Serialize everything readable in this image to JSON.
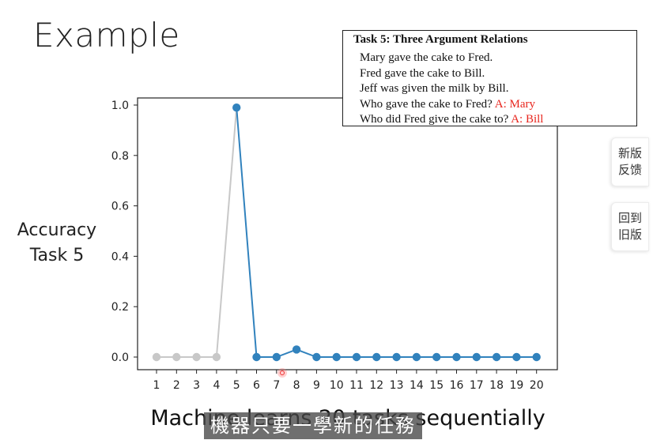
{
  "slide": {
    "title": "Example",
    "y_desc_line1": "Accuracy",
    "y_desc_line2": "Task 5",
    "caption": "Machine learns 20 tasks sequentially",
    "subtitle": "機器只要一學新的任務"
  },
  "task_box": {
    "title": "Task 5: Three Argument Relations",
    "lines": [
      {
        "text": "Mary gave the cake to Fred.",
        "answer": ""
      },
      {
        "text": "Fred gave the cake to Bill.",
        "answer": ""
      },
      {
        "text": "Jeff was given the milk by Bill.",
        "answer": ""
      },
      {
        "text": "Who gave the cake to Fred?",
        "answer": "A: Mary"
      },
      {
        "text": "Who did Fred give the cake to?",
        "answer": "A: Bill"
      }
    ]
  },
  "side_buttons": {
    "feedback_line1": "新版",
    "feedback_line2": "反馈",
    "back_line1": "回到",
    "back_line2": "旧版"
  },
  "colors": {
    "series_before": "#c8c8c8",
    "series_after": "#3182bd",
    "answer": "#e8251d"
  },
  "chart_data": {
    "type": "line",
    "title": "",
    "xlabel": "",
    "ylabel": "",
    "x": [
      1,
      2,
      3,
      4,
      5,
      6,
      7,
      8,
      9,
      10,
      11,
      12,
      13,
      14,
      15,
      16,
      17,
      18,
      19,
      20
    ],
    "y": [
      0,
      0,
      0,
      0,
      0.99,
      0,
      0,
      0.03,
      0,
      0,
      0,
      0,
      0,
      0,
      0,
      0,
      0,
      0,
      0,
      0
    ],
    "highlight_from_x": 5,
    "ylim": [
      -0.05,
      1.04
    ],
    "yticks": [
      0.0,
      0.2,
      0.4,
      0.6,
      0.8,
      1.0
    ],
    "ytick_labels": [
      "0.0",
      "0.2",
      "0.4",
      "0.6",
      "0.8",
      "1.0"
    ],
    "xticks": [
      1,
      2,
      3,
      4,
      5,
      6,
      7,
      8,
      9,
      10,
      11,
      12,
      13,
      14,
      15,
      16,
      17,
      18,
      19,
      20
    ],
    "grid": false
  }
}
